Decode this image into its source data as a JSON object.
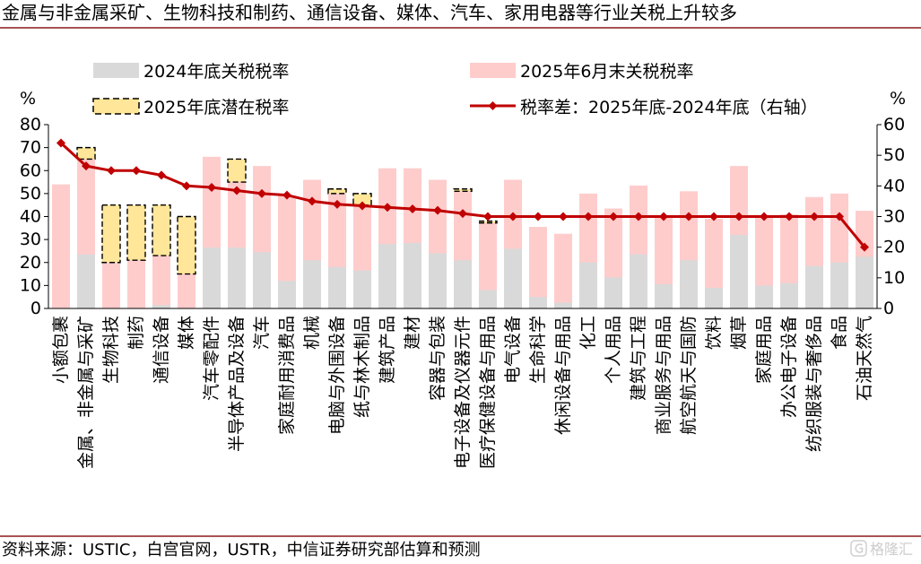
{
  "source": "资料来源：USTIC，白宫官网，USTR，中信证券研究部估算和预测",
  "watermark": "格隆汇",
  "watermark_icon": "watermark-logo-icon",
  "colors": {
    "rule": "#8B1A1A",
    "axis": "#000000",
    "box_stroke": "#000000"
  },
  "chart_data": {
    "type": "bar",
    "title": "金属与非金属采矿、生物科技和制药、通信设备、媒体、汽车、家用电器等行业关税上升较多",
    "ylabel": "%",
    "y2label": "%",
    "ylim": [
      0,
      80
    ],
    "yticks": [
      0,
      10,
      20,
      30,
      40,
      50,
      60,
      70,
      80
    ],
    "y2lim": [
      0,
      60
    ],
    "y2ticks": [
      0,
      10,
      20,
      30,
      40,
      50,
      60
    ],
    "grid": false,
    "legend": "top",
    "categories": [
      "小额包裹",
      "金属、非金属与采矿",
      "生物科技",
      "制药",
      "通信设备",
      "媒体",
      "汽车零配件",
      "半导体产品及设备",
      "汽车",
      "家庭耐用消费品",
      "机械",
      "电脑与外围设备",
      "纸与林木制品",
      "建筑产品",
      "建材",
      "容器与包装",
      "电子设备及仪器元件",
      "医疗保健设备与用品",
      "电气设备",
      "生命科学",
      "休闲设备与用品",
      "化工",
      "个人用品",
      "建筑与工程",
      "商业服务与用品",
      "航空航天与国防",
      "饮料",
      "烟草",
      "家庭用品",
      "办公电子设备",
      "纺织服装与奢侈品",
      "食品",
      "石油天然气"
    ],
    "series": [
      {
        "name": "2024年底关税税率",
        "type": "bar",
        "color": "#D9D9D9",
        "values": [
          0,
          23.5,
          0,
          0,
          1.5,
          0,
          26.5,
          26.5,
          24.5,
          12,
          21,
          18,
          16.5,
          28,
          28.5,
          24,
          21,
          8,
          26,
          5,
          2.5,
          20,
          13.5,
          23.5,
          10.5,
          21,
          9,
          32,
          10,
          11,
          18.5,
          20,
          22.5
        ]
      },
      {
        "name": "2025年6月末关税税率",
        "type": "bar",
        "color": "#FFCCCC",
        "values": [
          54,
          65,
          20,
          21,
          23,
          15,
          66,
          55,
          62,
          49,
          56,
          50,
          45,
          61,
          61,
          56,
          51,
          37.5,
          56,
          35.5,
          32.5,
          50,
          43.5,
          53.5,
          40.5,
          51,
          39,
          62,
          40,
          41,
          48.5,
          50,
          42.5
        ]
      },
      {
        "name": "2025年底潜在税率",
        "type": "bar",
        "style": "dashed",
        "color": "#FFE699",
        "values": [
          null,
          70,
          45,
          45,
          45,
          40,
          null,
          65,
          null,
          null,
          null,
          52,
          50,
          null,
          null,
          null,
          52,
          38,
          null,
          null,
          null,
          null,
          null,
          null,
          null,
          null,
          null,
          null,
          null,
          null,
          null,
          null,
          null
        ]
      },
      {
        "name": "税率差：2025年底-2024年底（右轴）",
        "type": "line",
        "axis": "right",
        "color": "#C00000",
        "values": [
          54,
          46.5,
          45,
          45,
          43.5,
          40,
          39.5,
          38.5,
          37.5,
          37,
          35,
          34,
          33.5,
          33,
          32.5,
          32,
          31,
          30,
          30,
          30,
          30,
          30,
          30,
          30,
          30,
          30,
          30,
          30,
          30,
          30,
          30,
          30,
          20
        ]
      }
    ]
  }
}
